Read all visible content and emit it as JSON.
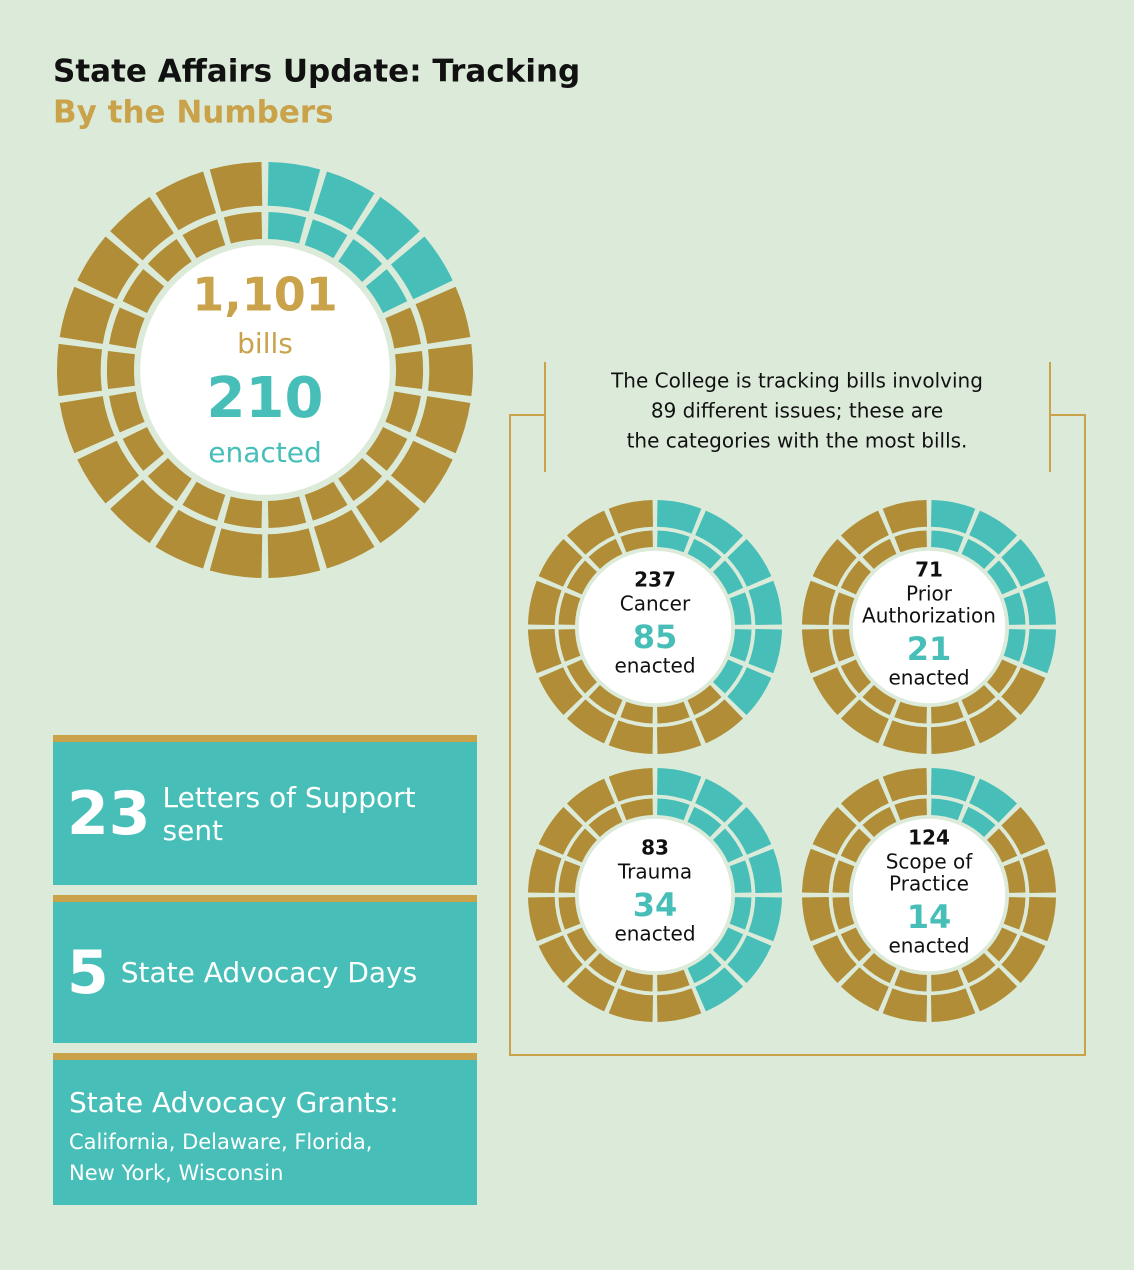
{
  "header": {
    "title": "State Affairs Update: Tracking",
    "subtitle": "By the Numbers"
  },
  "main": {
    "total": {
      "value": 1101,
      "label": "1,101"
    },
    "total_unit": "bills",
    "enacted": 210,
    "enacted_unit": "enacted"
  },
  "note": {
    "lines": [
      "The College is tracking bills involving",
      "89 different issues; these are",
      "the categories with the most bills."
    ]
  },
  "categories": [
    {
      "total": 237,
      "name_lines": [
        "Cancer"
      ],
      "enacted": 85,
      "unit": "enacted"
    },
    {
      "total": 71,
      "name_lines": [
        "Prior",
        "Authorization"
      ],
      "enacted": 21,
      "unit": "enacted"
    },
    {
      "total": 83,
      "name_lines": [
        "Trauma"
      ],
      "enacted": 34,
      "unit": "enacted"
    },
    {
      "total": 124,
      "name_lines": [
        "Scope of",
        "Practice"
      ],
      "enacted": 14,
      "unit": "enacted"
    }
  ],
  "stats": [
    {
      "number": 23,
      "label": "Letters of Support sent"
    },
    {
      "number": 5,
      "label": "State Advocacy Days"
    }
  ],
  "grants": {
    "title": "State Advocacy Grants:",
    "lines": [
      "California, Delaware, Florida,",
      "New York, Wisconsin"
    ]
  }
}
